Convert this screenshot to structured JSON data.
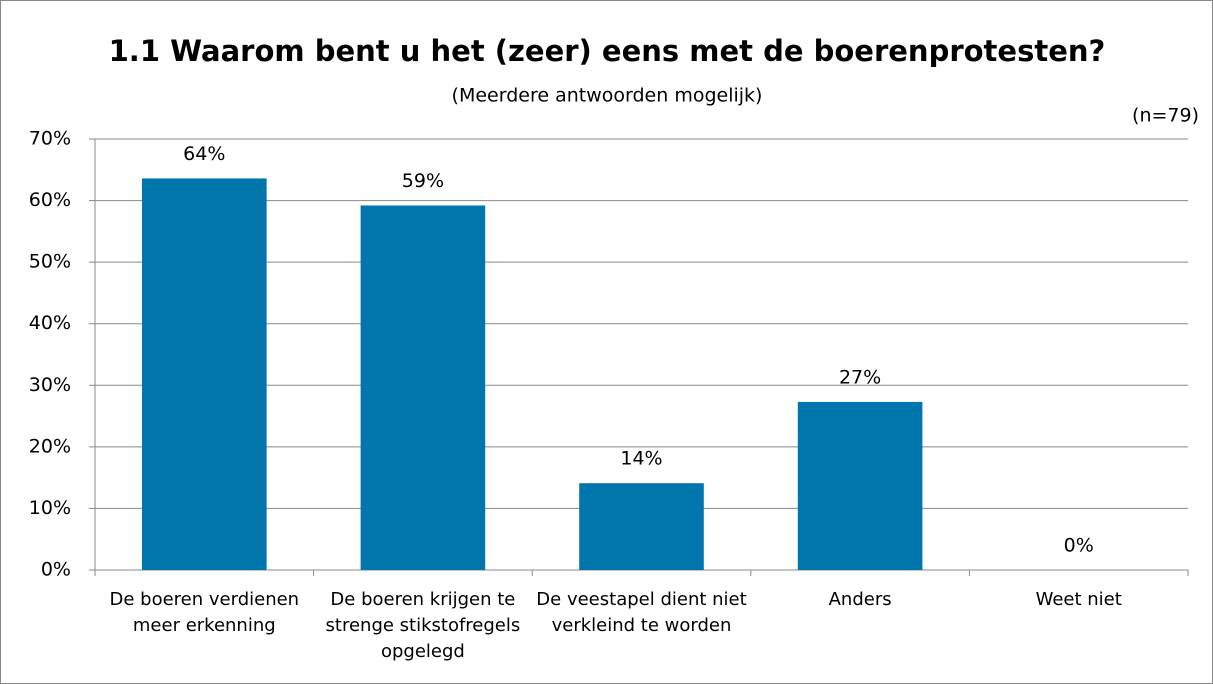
{
  "chart_data": {
    "type": "bar",
    "title": "1.1 Waarom bent u het (zeer) eens met de boerenprotesten?",
    "subtitle": "(Meerdere antwoorden mogelijk)",
    "annotation": "(n=79)",
    "categories": [
      "De boeren verdienen meer erkenning",
      "De boeren krijgen te strenge stikstofregels opgelegd",
      "De veestapel dient niet verkleind te worden",
      "Anders",
      "Weet niet"
    ],
    "values": [
      63.6,
      59.2,
      14.1,
      27.3,
      0
    ],
    "value_labels": [
      "64%",
      "59%",
      "14%",
      "27%",
      "0%"
    ],
    "color": "#0076ad",
    "ylim": [
      0,
      70
    ],
    "yticks": [
      {
        "value": 0,
        "label": "0%"
      },
      {
        "value": 10,
        "label": "10%"
      },
      {
        "value": 20,
        "label": "20%"
      },
      {
        "value": 30,
        "label": "30%"
      },
      {
        "value": 40,
        "label": "40%"
      },
      {
        "value": 50,
        "label": "50%"
      },
      {
        "value": 60,
        "label": "60%"
      },
      {
        "value": 70,
        "label": "70%"
      }
    ],
    "grid": true
  }
}
